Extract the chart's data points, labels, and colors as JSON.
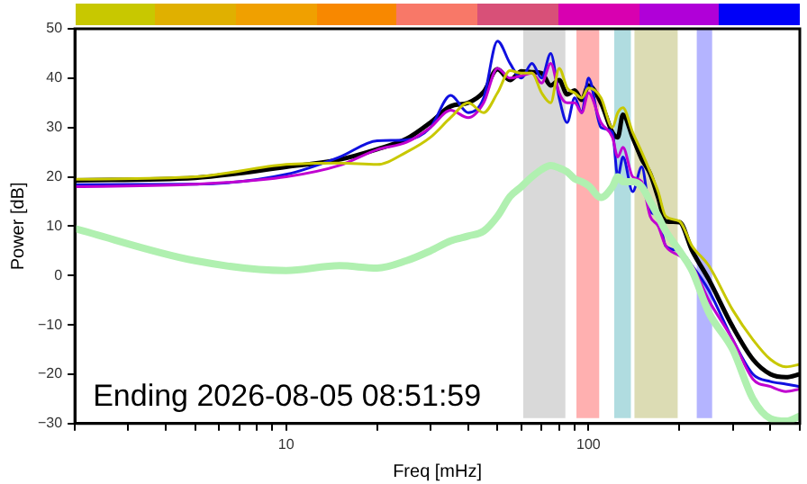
{
  "chart_data": {
    "type": "line",
    "xlabel": "Freq [mHz]",
    "ylabel": "Power [dB]",
    "annotations": [
      "Ending 2026-08-05 08:51:59"
    ],
    "log": "x",
    "grid": false,
    "legend": false,
    "marker": "none",
    "line_style": "solid",
    "xlim": [
      2,
      500
    ],
    "ylim": [
      -30,
      50
    ],
    "xticks": [
      {
        "value": 2,
        "label": null
      },
      {
        "value": 3,
        "label": null
      },
      {
        "value": 4,
        "label": null
      },
      {
        "value": 5,
        "label": null
      },
      {
        "value": 6,
        "label": null
      },
      {
        "value": 7,
        "label": null
      },
      {
        "value": 8,
        "label": null
      },
      {
        "value": 9,
        "label": null
      },
      10,
      {
        "value": 20,
        "label": null
      },
      {
        "value": 30,
        "label": null
      },
      {
        "value": 40,
        "label": null
      },
      {
        "value": 50,
        "label": null
      },
      {
        "value": 60,
        "label": null
      },
      {
        "value": 70,
        "label": null
      },
      {
        "value": 80,
        "label": null
      },
      {
        "value": 90,
        "label": null
      },
      100,
      {
        "value": 200,
        "label": null
      },
      {
        "value": 300,
        "label": null
      },
      {
        "value": 400,
        "label": null
      },
      {
        "value": 500,
        "label": null
      }
    ],
    "yticks": [
      -30,
      -20,
      -10,
      0,
      10,
      20,
      30,
      40,
      50
    ],
    "x": [
      2,
      5,
      10,
      15,
      20,
      25,
      30,
      35,
      40,
      45,
      50,
      55,
      60,
      65,
      70,
      75,
      80,
      85,
      90,
      95,
      100,
      110,
      120,
      125,
      130,
      140,
      150,
      160,
      170,
      180,
      200,
      220,
      250,
      300,
      350,
      400,
      450,
      500
    ],
    "bands": [
      {
        "axis": "x",
        "from": 60,
        "to": 85,
        "color": "#d9d9d9"
      },
      {
        "axis": "x",
        "from": 90,
        "to": 110,
        "color": "#ffb0b0"
      },
      {
        "axis": "x",
        "from": 120,
        "to": 140,
        "color": "#b0dce0"
      },
      {
        "axis": "x",
        "from": 140,
        "to": 200,
        "color": "#dcdcb4"
      },
      {
        "axis": "x",
        "from": 225,
        "to": 260,
        "color": "#b4b4ff"
      }
    ],
    "series": [
      {
        "color": "#b0f0b0",
        "values": [
          9.5,
          3,
          1,
          2,
          1.5,
          3,
          5,
          7,
          8,
          9,
          12,
          16,
          18,
          20,
          21.5,
          22.3,
          21.8,
          21,
          19.6,
          19,
          18.2,
          15.8,
          18,
          20,
          19,
          19,
          18,
          15,
          12,
          9,
          5,
          1,
          -7.5,
          -15,
          -25,
          -29,
          -29.5,
          -28.5
        ]
      },
      {
        "color": "#c8c800",
        "values": [
          19.5,
          20,
          22.5,
          22.8,
          22.5,
          25,
          28,
          32,
          35,
          33,
          37,
          41.5,
          41,
          41,
          37,
          35,
          42,
          38,
          37,
          36,
          38,
          36,
          30,
          33,
          34,
          29,
          25,
          21,
          17,
          12,
          11,
          6,
          2,
          -7,
          -13,
          -17,
          -18.5,
          -18
        ]
      },
      {
        "color": "#c000d0",
        "values": [
          18,
          18.5,
          20,
          22.3,
          25.5,
          27,
          30,
          33.5,
          32,
          35,
          42,
          40,
          40.5,
          41,
          39,
          43,
          37,
          35,
          35,
          33,
          37,
          31,
          28,
          24,
          26,
          20,
          19,
          12,
          10,
          6,
          4,
          2,
          -5,
          -13,
          -21,
          -22.5,
          -23.5,
          -23
        ]
      },
      {
        "color": "#1010e0",
        "values": [
          18.4,
          18.5,
          20.5,
          24,
          27.3,
          27.5,
          30,
          36.5,
          33,
          36,
          47.5,
          43,
          40,
          43,
          40,
          45,
          36,
          31,
          36,
          33,
          40,
          30,
          29,
          20,
          24,
          17,
          22,
          13,
          12,
          6,
          5,
          2,
          -3,
          -13,
          -20,
          -21.5,
          -22,
          -22.5
        ]
      },
      {
        "color": "#000000",
        "values": [
          19.3,
          19.8,
          22,
          23.5,
          25.6,
          27.7,
          31,
          34.3,
          35,
          37.2,
          41.8,
          39.6,
          41.4,
          41.2,
          41,
          38.5,
          39.6,
          36.7,
          37.5,
          35.6,
          38.5,
          35,
          29,
          28,
          32.6,
          28,
          23.6,
          20.6,
          15.8,
          11,
          10.8,
          5.1,
          -0.8,
          -10.4,
          -17,
          -20,
          -20.6,
          -20
        ]
      }
    ]
  }
}
